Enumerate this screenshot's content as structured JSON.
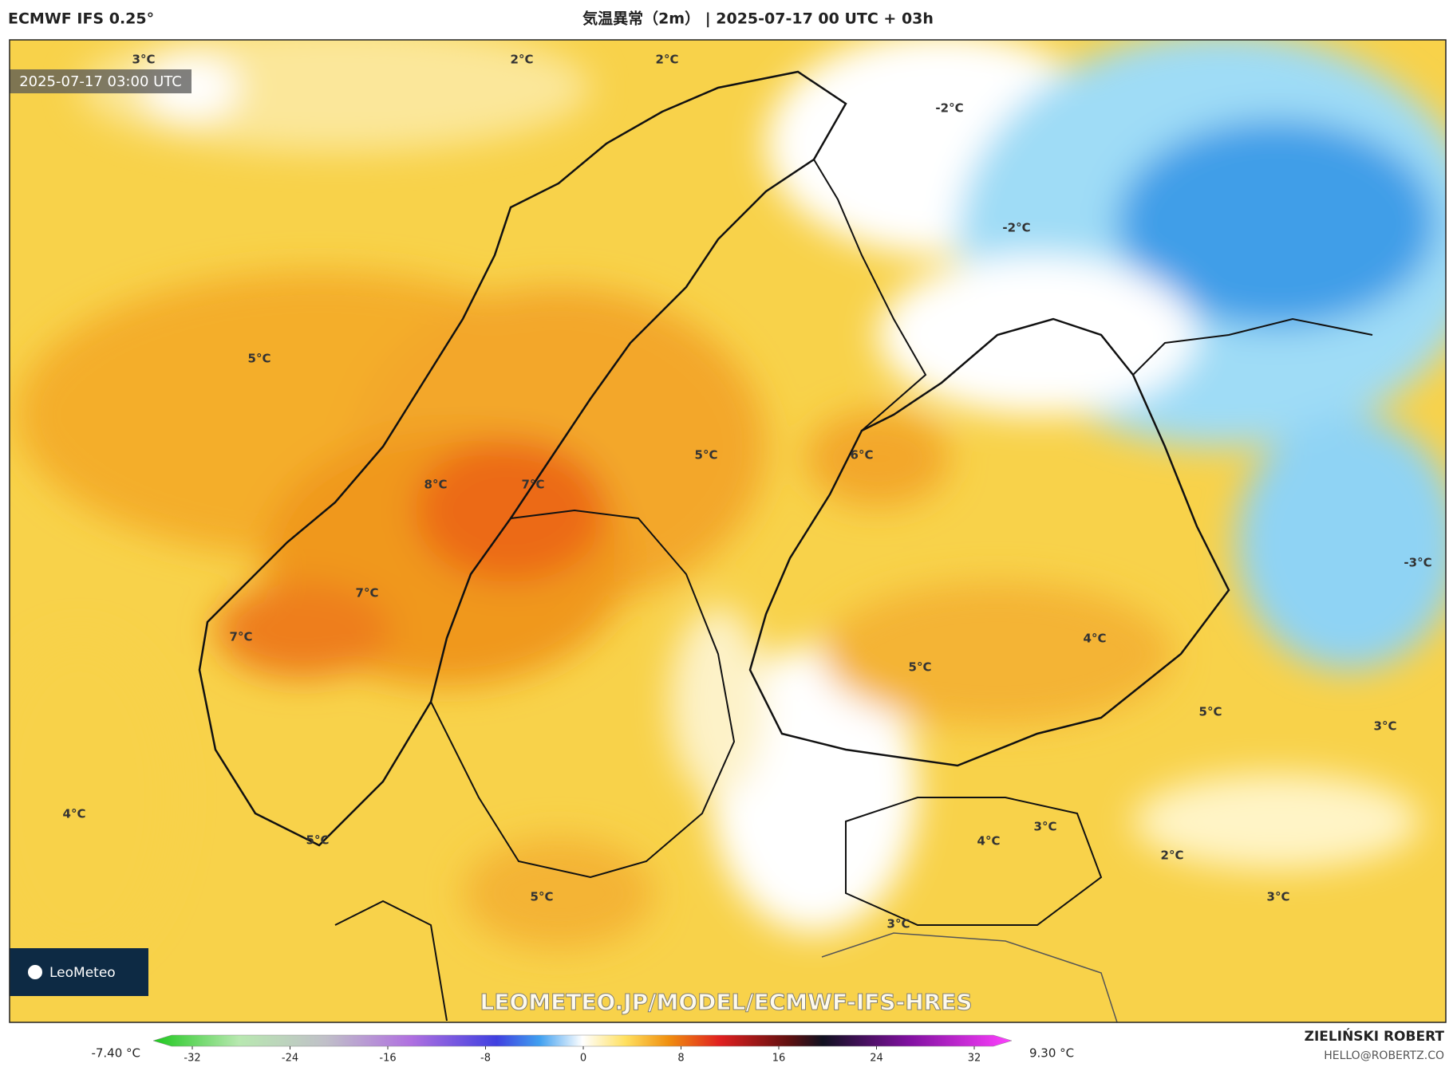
{
  "header": {
    "model": "ECMWF IFS 0.25°",
    "title": "気温異常（2m） | 2025-07-17 00 UTC + 03h"
  },
  "map": {
    "timestamp": "2025-07-17 03:00 UTC",
    "watermark": "LEOMETEO.JP/MODEL/ECMWF-IFS-HRES",
    "logo": "LeoMeteo",
    "labels": [
      "3°C",
      "2°C",
      "2°C",
      "-2°C",
      "-2°C",
      "5°C",
      "5°C",
      "6°C",
      "8°C",
      "7°C",
      "7°C",
      "7°C",
      "-3°C",
      "4°C",
      "5°C",
      "5°C",
      "3°C",
      "4°C",
      "5°C",
      "3°C",
      "4°C",
      "2°C",
      "3°C",
      "5°C",
      "3°C"
    ]
  },
  "colorbar": {
    "min_label": "-7.40 °C",
    "max_label": "9.30 °C",
    "ticks": [
      -32,
      -24,
      -16,
      -8,
      0,
      8,
      16,
      24,
      32
    ]
  },
  "credit": {
    "author": "ZIELIŃSKI ROBERT",
    "email": "HELLO@ROBERTZ.CO"
  }
}
